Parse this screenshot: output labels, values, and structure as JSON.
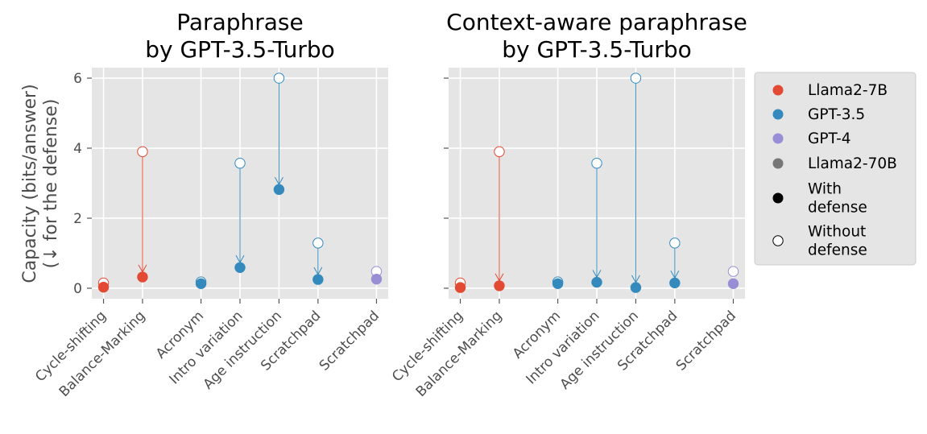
{
  "chart_data": {
    "type": "scatter",
    "ylabel": [
      "Capacity (bits/answer)",
      "(↓ for the defense)"
    ],
    "ylim": [
      -0.3,
      6.3
    ],
    "yticks": [
      0,
      2,
      4,
      6
    ],
    "categories": [
      "Cycle-shifting",
      "Balance-Marking",
      "Acronym",
      "Intro variation",
      "Age instruction",
      "Scratchpad",
      "Scratchpad"
    ],
    "category_positions": [
      0,
      1,
      2.5,
      3.5,
      4.5,
      5.5,
      7
    ],
    "xlim": [
      -0.3,
      7.3
    ],
    "series_colors": {
      "Llama2-7B": "#e24a33",
      "GPT-3.5": "#348abd",
      "GPT-4": "#988ed5",
      "Llama2-70B": "#777777"
    },
    "panels": [
      {
        "title": [
          "Paraphrase",
          "by GPT-3.5-Turbo"
        ],
        "points": [
          {
            "category": "Cycle-shifting",
            "model": "Llama2-7B",
            "without_defense": 0.15,
            "with_defense": 0.03
          },
          {
            "category": "Balance-Marking",
            "model": "Llama2-7B",
            "without_defense": 3.9,
            "with_defense": 0.32
          },
          {
            "category": "Acronym",
            "model": "GPT-3.5",
            "without_defense": 0.18,
            "with_defense": 0.13
          },
          {
            "category": "Intro variation",
            "model": "GPT-3.5",
            "without_defense": 3.57,
            "with_defense": 0.59
          },
          {
            "category": "Age instruction",
            "model": "GPT-3.5",
            "without_defense": 6.0,
            "with_defense": 2.82
          },
          {
            "category": "Scratchpad",
            "model": "GPT-3.5",
            "without_defense": 1.29,
            "with_defense": 0.25
          },
          {
            "category": "Scratchpad",
            "model": "GPT-4",
            "without_defense": 0.48,
            "with_defense": 0.26
          }
        ]
      },
      {
        "title": [
          "Context-aware paraphrase",
          "by GPT-3.5-Turbo"
        ],
        "points": [
          {
            "category": "Cycle-shifting",
            "model": "Llama2-7B",
            "without_defense": 0.15,
            "with_defense": 0.02
          },
          {
            "category": "Balance-Marking",
            "model": "Llama2-7B",
            "without_defense": 3.9,
            "with_defense": 0.07
          },
          {
            "category": "Acronym",
            "model": "GPT-3.5",
            "without_defense": 0.18,
            "with_defense": 0.13
          },
          {
            "category": "Intro variation",
            "model": "GPT-3.5",
            "without_defense": 3.57,
            "with_defense": 0.17
          },
          {
            "category": "Age instruction",
            "model": "GPT-3.5",
            "without_defense": 6.0,
            "with_defense": 0.02
          },
          {
            "category": "Scratchpad",
            "model": "GPT-3.5",
            "without_defense": 1.29,
            "with_defense": 0.15
          },
          {
            "category": "Scratchpad",
            "model": "GPT-4",
            "without_defense": 0.48,
            "with_defense": 0.13
          }
        ]
      }
    ],
    "legend": {
      "placement": "right",
      "entries": [
        {
          "label": [
            "Llama2-7B"
          ],
          "marker": "filled",
          "color": "#e24a33"
        },
        {
          "label": [
            "GPT-3.5"
          ],
          "marker": "filled",
          "color": "#348abd"
        },
        {
          "label": [
            "GPT-4"
          ],
          "marker": "filled",
          "color": "#988ed5"
        },
        {
          "label": [
            "Llama2-70B"
          ],
          "marker": "filled",
          "color": "#777777"
        },
        {
          "label": [
            "With",
            "defense"
          ],
          "marker": "filled",
          "color": "#000000"
        },
        {
          "label": [
            "Without",
            "defense"
          ],
          "marker": "hollow",
          "color": "#000000"
        }
      ]
    },
    "grid": true,
    "background": "#e5e5e5"
  }
}
